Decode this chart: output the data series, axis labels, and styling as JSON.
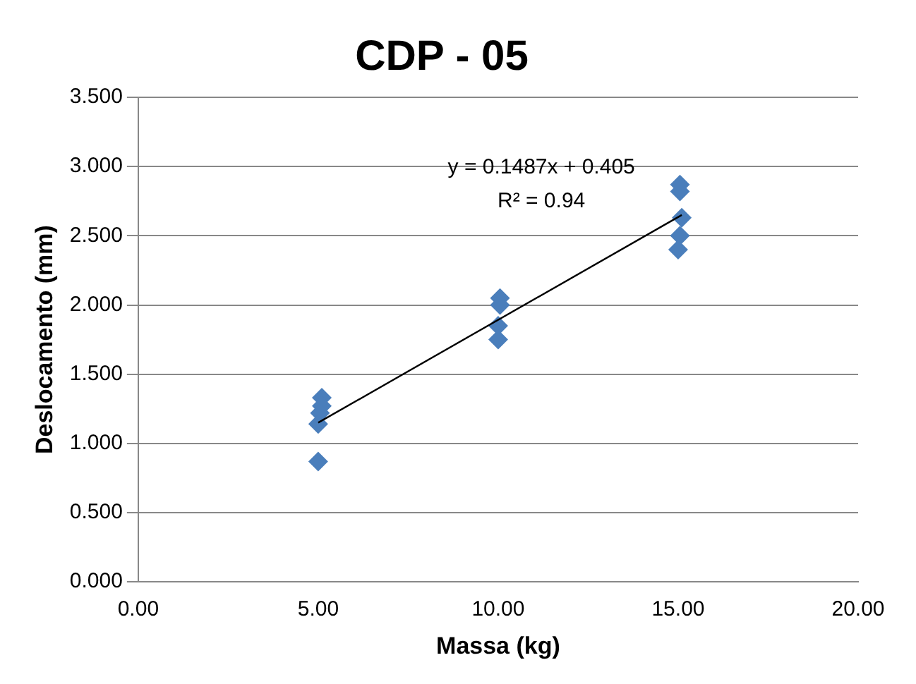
{
  "chart_data": {
    "type": "scatter",
    "title": "CDP - 05",
    "xlabel": "Massa (kg)",
    "ylabel": "Deslocamento (mm)",
    "series": [
      {
        "x": [
          5.1,
          5.1,
          5.05,
          5.0,
          5.0,
          10.05,
          10.05,
          10.0,
          10.0,
          15.05,
          15.05,
          15.1,
          15.05,
          15.0
        ],
        "values": [
          1.33,
          1.27,
          1.22,
          1.14,
          0.87,
          2.05,
          2.0,
          1.85,
          1.75,
          2.87,
          2.82,
          2.63,
          2.5,
          2.4
        ],
        "color": "#4a7ebb",
        "marker": "diamond"
      },
      {
        "type": "line",
        "x": [
          5,
          15.1
        ],
        "values": [
          1.15,
          2.65
        ],
        "color": "#000000",
        "marker": "none"
      }
    ],
    "annotations": [
      "y = 0.1487x + 0.405",
      "R² = 0.94"
    ],
    "xlim": [
      0,
      20
    ],
    "xticks": [
      {
        "value": 0,
        "label": "0.00"
      },
      {
        "value": 5,
        "label": "5.00"
      },
      {
        "value": 10,
        "label": "10.00"
      },
      {
        "value": 15,
        "label": "15.00"
      },
      {
        "value": 20,
        "label": "20.00"
      }
    ],
    "ylim": [
      0,
      3.5
    ],
    "yticks": [
      {
        "value": 0,
        "label": "0.000"
      },
      {
        "value": 0.5,
        "label": "0.500"
      },
      {
        "value": 1,
        "label": "1.000"
      },
      {
        "value": 1.5,
        "label": "1.500"
      },
      {
        "value": 2,
        "label": "2.000"
      },
      {
        "value": 2.5,
        "label": "2.500"
      },
      {
        "value": 3,
        "label": "3.000"
      },
      {
        "value": 3.5,
        "label": "3.500"
      }
    ],
    "grid": "y",
    "legend": false
  }
}
